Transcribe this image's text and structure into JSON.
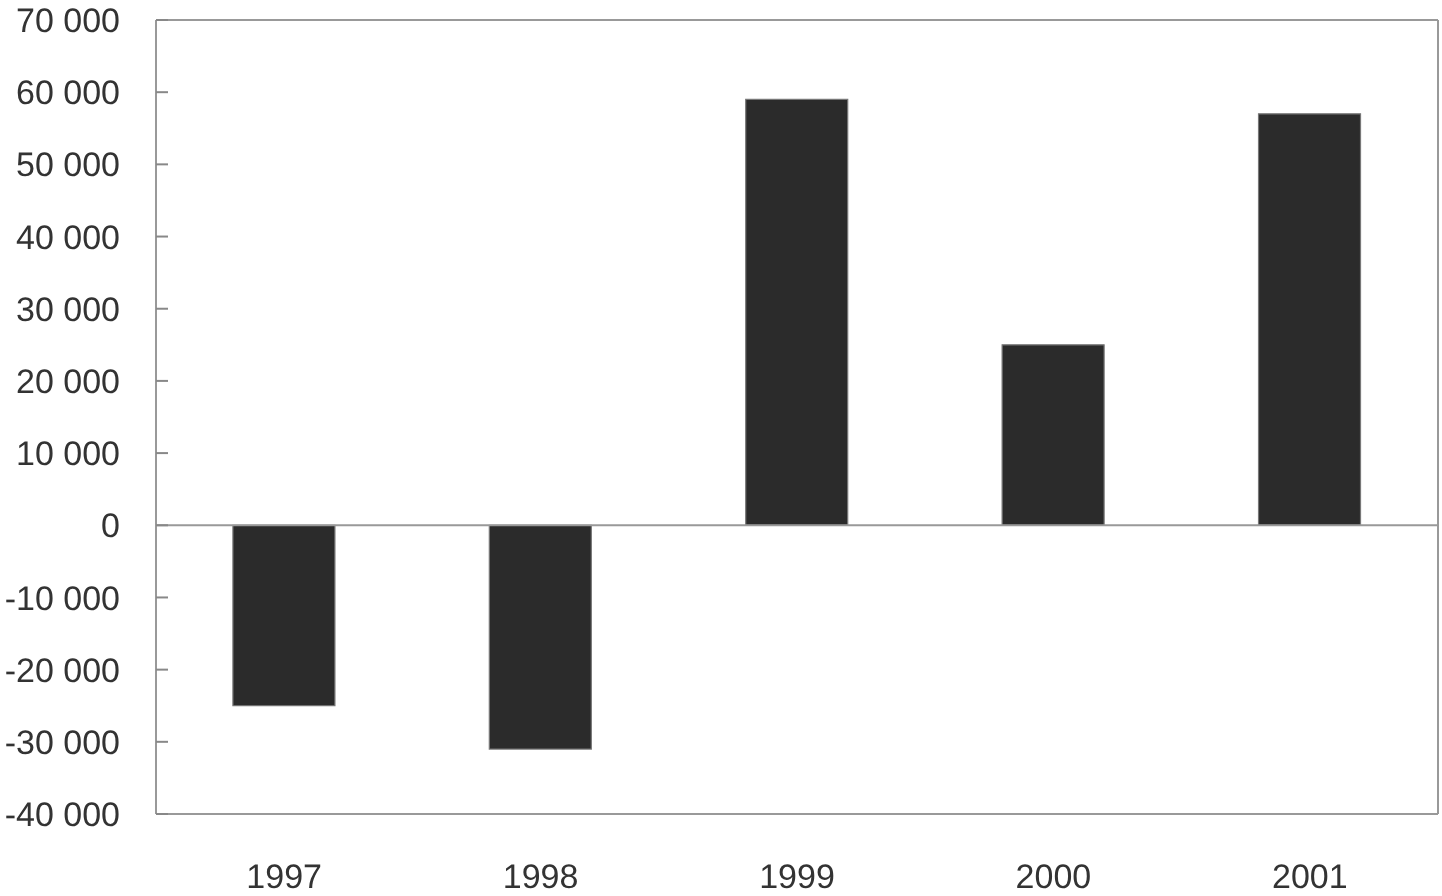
{
  "chart_data": {
    "type": "bar",
    "categories": [
      "1997",
      "1998",
      "1999",
      "2000",
      "2001"
    ],
    "values": [
      -25000,
      -31000,
      59000,
      25000,
      57000
    ],
    "color": "#2b2b2b",
    "ylim": [
      -40000,
      70000
    ],
    "yticks": [
      {
        "value": -40000,
        "label": "-40 000"
      },
      {
        "value": -30000,
        "label": "-30 000"
      },
      {
        "value": -20000,
        "label": "-20 000"
      },
      {
        "value": -10000,
        "label": "-10 000"
      },
      0,
      {
        "value": 10000,
        "label": "10 000"
      },
      {
        "value": 20000,
        "label": "20 000"
      },
      {
        "value": 30000,
        "label": "30 000"
      },
      {
        "value": 40000,
        "label": "40 000"
      },
      {
        "value": 50000,
        "label": "50 000"
      },
      {
        "value": 60000,
        "label": "60 000"
      },
      {
        "value": 70000,
        "label": "70 000"
      }
    ]
  }
}
